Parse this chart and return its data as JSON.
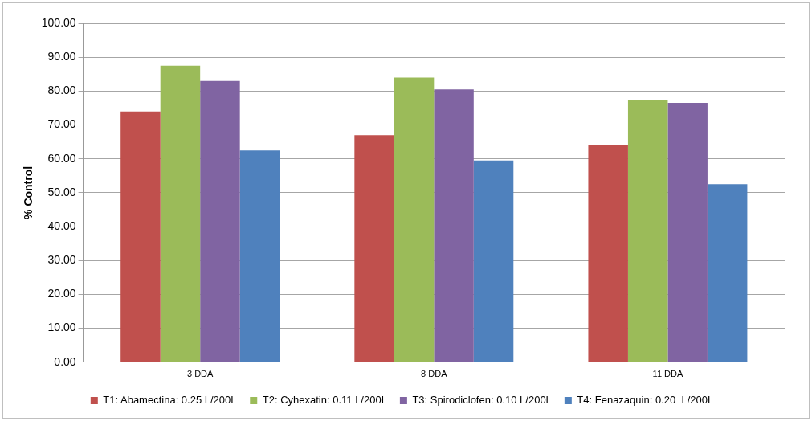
{
  "chart_data": {
    "type": "bar",
    "ylabel": "% Control",
    "categories": [
      "3 DDA",
      "8 DDA",
      "11 DDA"
    ],
    "series": [
      {
        "name": "T1: Abamectina: 0.25 L/200L",
        "color": "#c0504d",
        "values": [
          74,
          67,
          64
        ]
      },
      {
        "name": "T2: Cyhexatin: 0.11 L/200L",
        "color": "#9bbb59",
        "values": [
          87.5,
          84,
          77.5
        ]
      },
      {
        "name": "T3: Spirodiclofen: 0.10 L/200L",
        "color": "#8064a2",
        "values": [
          83,
          80.5,
          76.5
        ]
      },
      {
        "name": "T4: Fenazaquin: 0.20  L/200L",
        "color": "#4f81bd",
        "values": [
          62.5,
          59.5,
          52.5
        ]
      }
    ],
    "ylim": [
      0,
      100
    ],
    "yticks": [
      {
        "value": 0,
        "label": "0.00"
      },
      {
        "value": 10,
        "label": "10.00"
      },
      {
        "value": 20,
        "label": "20.00"
      },
      {
        "value": 30,
        "label": "30.00"
      },
      {
        "value": 40,
        "label": "40.00"
      },
      {
        "value": 50,
        "label": "50.00"
      },
      {
        "value": 60,
        "label": "60.00"
      },
      {
        "value": 70,
        "label": "70.00"
      },
      {
        "value": 80,
        "label": "80.00"
      },
      {
        "value": 90,
        "label": "90.00"
      },
      {
        "value": 100,
        "label": "100.00"
      }
    ],
    "grid": "y",
    "legend": "bottom"
  }
}
